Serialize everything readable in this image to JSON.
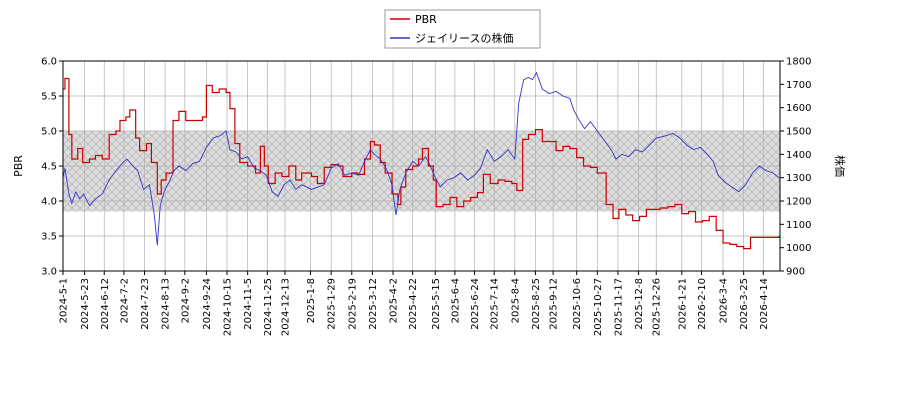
{
  "chart_data": {
    "type": "line",
    "legend": {
      "position": "top-center",
      "entries": [
        "PBR",
        "ジェイリースの株価"
      ]
    },
    "xlabel": "",
    "ylabel_left": "PBR",
    "ylabel_right": "株価",
    "ylim_left": [
      3.0,
      6.0
    ],
    "ylim_right": [
      900,
      1800
    ],
    "yticks_left": [
      "3.0",
      "3.5",
      "4.0",
      "4.5",
      "5.0",
      "5.5",
      "6.0"
    ],
    "yticks_right": [
      "900",
      "1000",
      "1100",
      "1200",
      "1300",
      "1400",
      "1500",
      "1600",
      "1700",
      "1800"
    ],
    "xlim": [
      "2024-05-01",
      "2026-05-01"
    ],
    "xticks": [
      "2024-5-1",
      "2024-5-23",
      "2024-6-12",
      "2024-7-2",
      "2024-7-23",
      "2024-8-13",
      "2024-9-2",
      "2024-9-24",
      "2024-10-15",
      "2024-11-5",
      "2024-11-25",
      "2024-12-13",
      "2025-1-8",
      "2025-1-29",
      "2025-2-19",
      "2025-3-12",
      "2025-4-2",
      "2025-4-22",
      "2025-5-15",
      "2025-6-4",
      "2025-6-24",
      "2025-7-14",
      "2025-8-4",
      "2025-8-25",
      "2025-9-12",
      "2025-10-6",
      "2025-10-27",
      "2025-11-17",
      "2025-12-8",
      "2025-12-26",
      "2026-1-21",
      "2026-2-10",
      "2026-3-4",
      "2026-3-25",
      "2026-4-14"
    ],
    "band_left": [
      3.85,
      5.0
    ],
    "grid": true,
    "colors": {
      "pbr": "#cc0000",
      "price": "#3333cc",
      "band_fill": "#dddddd",
      "band_hatch": "#aaaaaa",
      "grid": "#b0b0b0"
    },
    "series": [
      {
        "name": "PBR",
        "axis": "left",
        "points": [
          [
            "2024-05-01",
            5.6
          ],
          [
            "2024-05-03",
            5.75
          ],
          [
            "2024-05-07",
            4.95
          ],
          [
            "2024-05-10",
            4.6
          ],
          [
            "2024-05-16",
            4.75
          ],
          [
            "2024-05-21",
            4.55
          ],
          [
            "2024-05-28",
            4.6
          ],
          [
            "2024-06-03",
            4.65
          ],
          [
            "2024-06-10",
            4.6
          ],
          [
            "2024-06-17",
            4.95
          ],
          [
            "2024-06-24",
            5.0
          ],
          [
            "2024-06-28",
            5.15
          ],
          [
            "2024-07-04",
            5.2
          ],
          [
            "2024-07-08",
            5.3
          ],
          [
            "2024-07-14",
            4.9
          ],
          [
            "2024-07-18",
            4.72
          ],
          [
            "2024-07-25",
            4.82
          ],
          [
            "2024-07-30",
            4.55
          ],
          [
            "2024-08-05",
            4.1
          ],
          [
            "2024-08-09",
            4.3
          ],
          [
            "2024-08-14",
            4.4
          ],
          [
            "2024-08-21",
            5.15
          ],
          [
            "2024-08-27",
            5.28
          ],
          [
            "2024-09-03",
            5.15
          ],
          [
            "2024-09-12",
            5.15
          ],
          [
            "2024-09-20",
            5.2
          ],
          [
            "2024-09-24",
            5.65
          ],
          [
            "2024-09-30",
            5.55
          ],
          [
            "2024-10-07",
            5.6
          ],
          [
            "2024-10-14",
            5.55
          ],
          [
            "2024-10-18",
            5.32
          ],
          [
            "2024-10-23",
            4.82
          ],
          [
            "2024-10-28",
            4.55
          ],
          [
            "2024-11-05",
            4.5
          ],
          [
            "2024-11-13",
            4.4
          ],
          [
            "2024-11-18",
            4.78
          ],
          [
            "2024-11-22",
            4.5
          ],
          [
            "2024-11-26",
            4.25
          ],
          [
            "2024-12-03",
            4.4
          ],
          [
            "2024-12-10",
            4.35
          ],
          [
            "2024-12-17",
            4.5
          ],
          [
            "2024-12-24",
            4.3
          ],
          [
            "2024-12-30",
            4.4
          ],
          [
            "2025-01-09",
            4.35
          ],
          [
            "2025-01-15",
            4.25
          ],
          [
            "2025-01-22",
            4.48
          ],
          [
            "2025-01-29",
            4.52
          ],
          [
            "2025-02-05",
            4.5
          ],
          [
            "2025-02-10",
            4.35
          ],
          [
            "2025-02-19",
            4.4
          ],
          [
            "2025-02-25",
            4.38
          ],
          [
            "2025-03-04",
            4.6
          ],
          [
            "2025-03-10",
            4.85
          ],
          [
            "2025-03-14",
            4.8
          ],
          [
            "2025-03-20",
            4.55
          ],
          [
            "2025-03-25",
            4.4
          ],
          [
            "2025-04-01",
            4.1
          ],
          [
            "2025-04-07",
            3.95
          ],
          [
            "2025-04-10",
            4.2
          ],
          [
            "2025-04-15",
            4.45
          ],
          [
            "2025-04-22",
            4.5
          ],
          [
            "2025-04-28",
            4.6
          ],
          [
            "2025-05-02",
            4.75
          ],
          [
            "2025-05-08",
            4.5
          ],
          [
            "2025-05-13",
            4.3
          ],
          [
            "2025-05-16",
            3.92
          ],
          [
            "2025-05-23",
            3.95
          ],
          [
            "2025-05-30",
            4.05
          ],
          [
            "2025-06-06",
            3.92
          ],
          [
            "2025-06-13",
            4.0
          ],
          [
            "2025-06-20",
            4.05
          ],
          [
            "2025-06-27",
            4.12
          ],
          [
            "2025-07-03",
            4.38
          ],
          [
            "2025-07-10",
            4.25
          ],
          [
            "2025-07-18",
            4.3
          ],
          [
            "2025-07-25",
            4.28
          ],
          [
            "2025-08-01",
            4.25
          ],
          [
            "2025-08-06",
            4.15
          ],
          [
            "2025-08-12",
            4.88
          ],
          [
            "2025-08-18",
            4.95
          ],
          [
            "2025-08-25",
            5.02
          ],
          [
            "2025-09-01",
            4.85
          ],
          [
            "2025-09-08",
            4.85
          ],
          [
            "2025-09-15",
            4.72
          ],
          [
            "2025-09-22",
            4.78
          ],
          [
            "2025-09-29",
            4.75
          ],
          [
            "2025-10-06",
            4.62
          ],
          [
            "2025-10-13",
            4.5
          ],
          [
            "2025-10-20",
            4.48
          ],
          [
            "2025-10-27",
            4.4
          ],
          [
            "2025-11-05",
            3.95
          ],
          [
            "2025-11-12",
            3.75
          ],
          [
            "2025-11-18",
            3.88
          ],
          [
            "2025-11-25",
            3.8
          ],
          [
            "2025-12-02",
            3.72
          ],
          [
            "2025-12-09",
            3.78
          ],
          [
            "2025-12-16",
            3.88
          ],
          [
            "2025-12-23",
            3.88
          ],
          [
            "2025-12-30",
            3.9
          ],
          [
            "2026-01-07",
            3.92
          ],
          [
            "2026-01-14",
            3.95
          ],
          [
            "2026-01-21",
            3.82
          ],
          [
            "2026-01-28",
            3.85
          ],
          [
            "2026-02-04",
            3.7
          ],
          [
            "2026-02-11",
            3.72
          ],
          [
            "2026-02-18",
            3.78
          ],
          [
            "2026-02-25",
            3.58
          ],
          [
            "2026-03-04",
            3.4
          ],
          [
            "2026-03-11",
            3.38
          ],
          [
            "2026-03-18",
            3.35
          ],
          [
            "2026-03-25",
            3.32
          ],
          [
            "2026-04-01",
            3.48
          ],
          [
            "2026-04-10",
            3.48
          ],
          [
            "2026-04-20",
            3.48
          ],
          [
            "2026-04-30",
            3.5
          ]
        ]
      },
      {
        "name": "ジェイリースの株価",
        "axis": "right",
        "points": [
          [
            "2024-05-01",
            1300
          ],
          [
            "2024-05-03",
            1340
          ],
          [
            "2024-05-07",
            1230
          ],
          [
            "2024-05-10",
            1190
          ],
          [
            "2024-05-14",
            1240
          ],
          [
            "2024-05-18",
            1210
          ],
          [
            "2024-05-22",
            1230
          ],
          [
            "2024-05-28",
            1180
          ],
          [
            "2024-06-03",
            1210
          ],
          [
            "2024-06-10",
            1230
          ],
          [
            "2024-06-17",
            1290
          ],
          [
            "2024-06-24",
            1330
          ],
          [
            "2024-06-30",
            1360
          ],
          [
            "2024-07-05",
            1380
          ],
          [
            "2024-07-11",
            1350
          ],
          [
            "2024-07-16",
            1330
          ],
          [
            "2024-07-22",
            1250
          ],
          [
            "2024-07-28",
            1270
          ],
          [
            "2024-08-02",
            1140
          ],
          [
            "2024-08-05",
            1010
          ],
          [
            "2024-08-08",
            1180
          ],
          [
            "2024-08-12",
            1240
          ],
          [
            "2024-08-18",
            1290
          ],
          [
            "2024-08-22",
            1330
          ],
          [
            "2024-08-27",
            1350
          ],
          [
            "2024-09-03",
            1330
          ],
          [
            "2024-09-10",
            1360
          ],
          [
            "2024-09-17",
            1370
          ],
          [
            "2024-09-24",
            1430
          ],
          [
            "2024-10-01",
            1470
          ],
          [
            "2024-10-08",
            1480
          ],
          [
            "2024-10-14",
            1500
          ],
          [
            "2024-10-18",
            1420
          ],
          [
            "2024-10-24",
            1410
          ],
          [
            "2024-10-30",
            1380
          ],
          [
            "2024-11-05",
            1390
          ],
          [
            "2024-11-12",
            1340
          ],
          [
            "2024-11-18",
            1330
          ],
          [
            "2024-11-24",
            1310
          ],
          [
            "2024-11-30",
            1240
          ],
          [
            "2024-12-06",
            1220
          ],
          [
            "2024-12-12",
            1270
          ],
          [
            "2024-12-18",
            1290
          ],
          [
            "2024-12-24",
            1250
          ],
          [
            "2024-12-30",
            1270
          ],
          [
            "2025-01-09",
            1250
          ],
          [
            "2025-01-16",
            1260
          ],
          [
            "2025-01-22",
            1270
          ],
          [
            "2025-01-29",
            1340
          ],
          [
            "2025-02-05",
            1360
          ],
          [
            "2025-02-12",
            1310
          ],
          [
            "2025-02-19",
            1320
          ],
          [
            "2025-02-26",
            1310
          ],
          [
            "2025-03-04",
            1370
          ],
          [
            "2025-03-10",
            1420
          ],
          [
            "2025-03-14",
            1400
          ],
          [
            "2025-03-20",
            1380
          ],
          [
            "2025-03-26",
            1340
          ],
          [
            "2025-04-01",
            1270
          ],
          [
            "2025-04-05",
            1140
          ],
          [
            "2025-04-09",
            1250
          ],
          [
            "2025-04-15",
            1320
          ],
          [
            "2025-04-22",
            1370
          ],
          [
            "2025-04-28",
            1350
          ],
          [
            "2025-05-05",
            1390
          ],
          [
            "2025-05-09",
            1360
          ],
          [
            "2025-05-14",
            1310
          ],
          [
            "2025-05-20",
            1260
          ],
          [
            "2025-05-27",
            1290
          ],
          [
            "2025-06-03",
            1300
          ],
          [
            "2025-06-10",
            1320
          ],
          [
            "2025-06-17",
            1290
          ],
          [
            "2025-06-24",
            1310
          ],
          [
            "2025-06-30",
            1340
          ],
          [
            "2025-07-07",
            1420
          ],
          [
            "2025-07-14",
            1370
          ],
          [
            "2025-07-21",
            1390
          ],
          [
            "2025-07-28",
            1420
          ],
          [
            "2025-08-04",
            1380
          ],
          [
            "2025-08-08",
            1620
          ],
          [
            "2025-08-13",
            1720
          ],
          [
            "2025-08-18",
            1730
          ],
          [
            "2025-08-22",
            1720
          ],
          [
            "2025-08-26",
            1750
          ],
          [
            "2025-09-01",
            1680
          ],
          [
            "2025-09-08",
            1660
          ],
          [
            "2025-09-15",
            1670
          ],
          [
            "2025-09-22",
            1650
          ],
          [
            "2025-09-29",
            1640
          ],
          [
            "2025-10-03",
            1590
          ],
          [
            "2025-10-08",
            1550
          ],
          [
            "2025-10-14",
            1510
          ],
          [
            "2025-10-20",
            1540
          ],
          [
            "2025-10-27",
            1500
          ],
          [
            "2025-11-03",
            1460
          ],
          [
            "2025-11-10",
            1420
          ],
          [
            "2025-11-15",
            1380
          ],
          [
            "2025-11-21",
            1400
          ],
          [
            "2025-11-28",
            1390
          ],
          [
            "2025-12-05",
            1420
          ],
          [
            "2025-12-12",
            1410
          ],
          [
            "2025-12-19",
            1440
          ],
          [
            "2025-12-26",
            1470
          ],
          [
            "2026-01-05",
            1480
          ],
          [
            "2026-01-12",
            1490
          ],
          [
            "2026-01-19",
            1470
          ],
          [
            "2026-01-26",
            1440
          ],
          [
            "2026-02-02",
            1420
          ],
          [
            "2026-02-09",
            1430
          ],
          [
            "2026-02-16",
            1400
          ],
          [
            "2026-02-22",
            1370
          ],
          [
            "2026-02-27",
            1310
          ],
          [
            "2026-03-06",
            1280
          ],
          [
            "2026-03-13",
            1260
          ],
          [
            "2026-03-20",
            1240
          ],
          [
            "2026-03-27",
            1270
          ],
          [
            "2026-04-03",
            1320
          ],
          [
            "2026-04-10",
            1350
          ],
          [
            "2026-04-17",
            1330
          ],
          [
            "2026-04-24",
            1320
          ],
          [
            "2026-04-30",
            1300
          ]
        ]
      }
    ]
  }
}
